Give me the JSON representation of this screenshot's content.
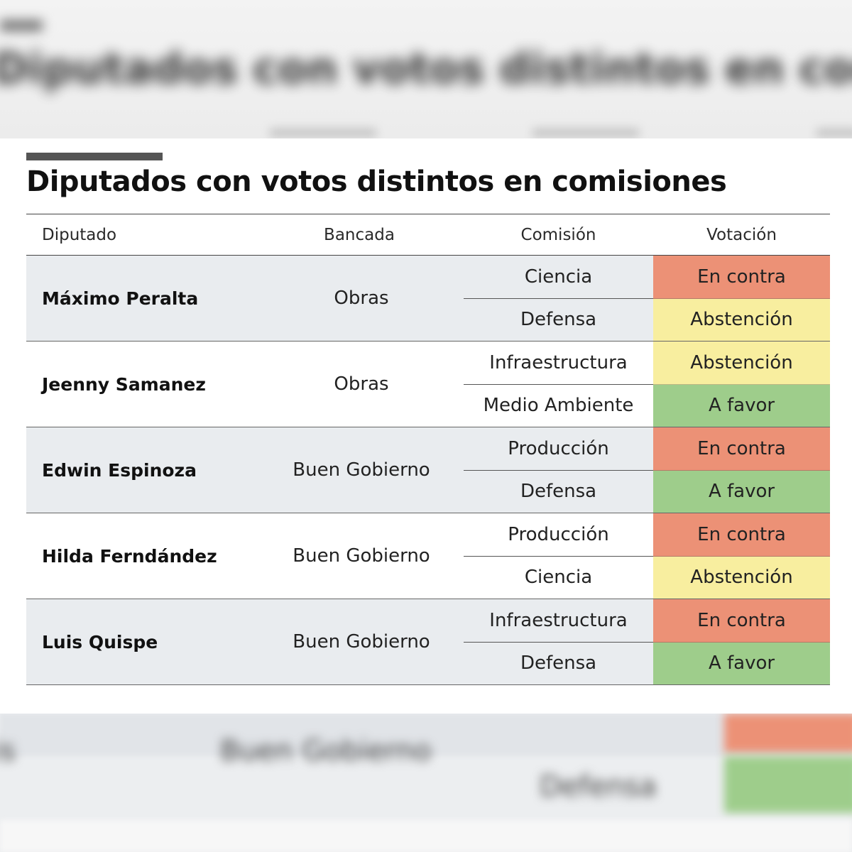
{
  "title": "Diputados con votos distintos en comisiones",
  "headers": {
    "diputado": "Diputado",
    "bancada": "Bancada",
    "comision": "Comisión",
    "votacion": "Votación"
  },
  "rows": [
    {
      "name": "Máximo Peralta",
      "bancada": "Obras",
      "votes": [
        {
          "comision": "Ciencia",
          "votacion": "En contra"
        },
        {
          "comision": "Defensa",
          "votacion": "Abstención"
        }
      ]
    },
    {
      "name": "Jeenny Samanez",
      "bancada": "Obras",
      "votes": [
        {
          "comision": "Infraestructura",
          "votacion": "Abstención"
        },
        {
          "comision": "Medio Ambiente",
          "votacion": "A favor"
        }
      ]
    },
    {
      "name": "Edwin Espinoza",
      "bancada": "Buen Gobierno",
      "votes": [
        {
          "comision": "Producción",
          "votacion": "En contra"
        },
        {
          "comision": "Defensa",
          "votacion": "A favor"
        }
      ]
    },
    {
      "name": "Hilda Ferndández",
      "bancada": "Buen Gobierno",
      "votes": [
        {
          "comision": "Producción",
          "votacion": "En contra"
        },
        {
          "comision": "Ciencia",
          "votacion": "Abstención"
        }
      ]
    },
    {
      "name": "Luis Quispe",
      "bancada": "Buen Gobierno",
      "votes": [
        {
          "comision": "Infraestructura",
          "votacion": "En contra"
        },
        {
          "comision": "Defensa",
          "votacion": "A favor"
        }
      ]
    }
  ],
  "colors": {
    "en_contra": "#ec9176",
    "abstencion": "#f8ee9f",
    "a_favor": "#9ecd8b",
    "shaded_row": "#e9ecef"
  }
}
